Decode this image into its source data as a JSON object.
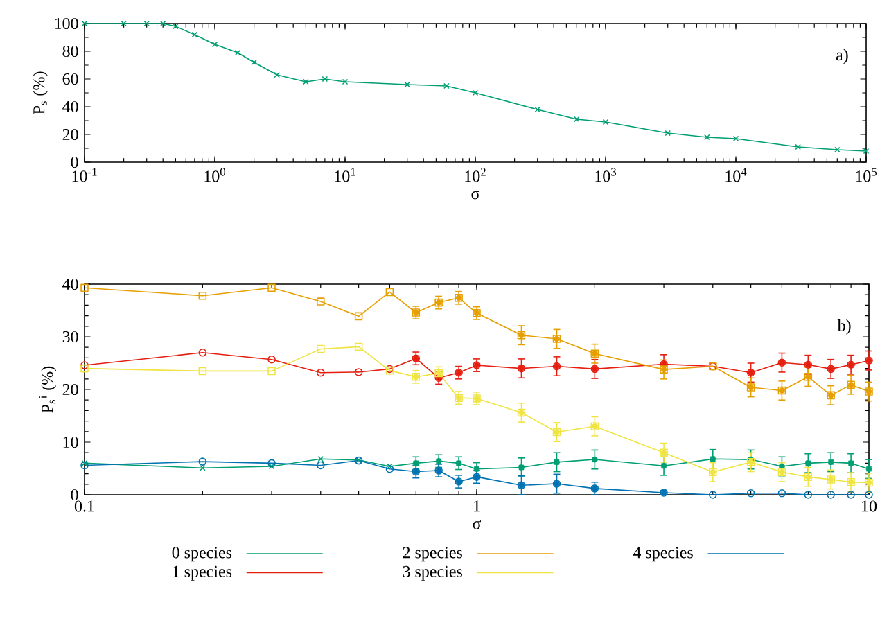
{
  "chart_data": [
    {
      "type": "line",
      "ylabel": "P$_{s}$ (%)",
      "xlabel": "σ",
      "annotations": [
        "a)"
      ],
      "log": "x",
      "marker": "cross",
      "color": "#009e73",
      "x": [
        0.1,
        0.2,
        0.3,
        0.4,
        0.5,
        0.7,
        1,
        1.5,
        2,
        3,
        5,
        7,
        10,
        30,
        60,
        100,
        300,
        600,
        1000,
        3000,
        6000,
        10000,
        30000,
        60000,
        100000
      ],
      "values": [
        100,
        100,
        100,
        100,
        98,
        92,
        85,
        79,
        72,
        63,
        58,
        60,
        58,
        56,
        55,
        50,
        38,
        31,
        29,
        21,
        18,
        17,
        11,
        9,
        8
      ],
      "xlim": [
        0.1,
        100000
      ],
      "ylim": [
        0,
        100
      ],
      "xticks": [
        {
          "value": 0.1,
          "label": "10$^{-1}$"
        },
        {
          "value": 1,
          "label": "10$^{0}$"
        },
        {
          "value": 10,
          "label": "10$^{1}$"
        },
        {
          "value": 100,
          "label": "10$^{2}$"
        },
        {
          "value": 1000,
          "label": "10$^{3}$"
        },
        {
          "value": 10000,
          "label": "10$^{4}$"
        },
        {
          "value": 100000,
          "label": "10$^{5}$"
        }
      ],
      "yticks": [
        0,
        20,
        40,
        60,
        80,
        100
      ]
    },
    {
      "type": "line",
      "ylabel": "P$_{s}$$^{i}$ (%)",
      "xlabel": "σ",
      "annotations": [
        "b)"
      ],
      "log": "x",
      "legend": "bottom",
      "x": [
        0.1,
        0.2,
        0.3,
        0.4,
        0.5,
        0.6,
        0.7,
        0.8,
        0.9,
        1,
        1.3,
        1.6,
        2,
        3,
        4,
        5,
        6,
        7,
        8,
        9,
        10
      ],
      "xlim": [
        0.1,
        10
      ],
      "ylim": [
        0,
        40
      ],
      "xticks": [
        0.1,
        1,
        10
      ],
      "yticks": [
        0,
        10,
        20,
        30,
        40
      ],
      "series": [
        {
          "name": "0 species",
          "color": "#009e73",
          "marker": "cross",
          "values": [
            6.0,
            5.1,
            5.4,
            6.8,
            6.6,
            5.4,
            6.0,
            6.4,
            6.0,
            4.9,
            5.2,
            6.2,
            6.7,
            5.5,
            6.8,
            6.7,
            5.4,
            6.0,
            6.2,
            6.0,
            4.9
          ],
          "errors": [
            null,
            null,
            null,
            null,
            null,
            null,
            1.2,
            1.2,
            1.2,
            1.2,
            1.8,
            1.8,
            1.8,
            1.8,
            1.8,
            1.8,
            1.8,
            1.8,
            1.8,
            1.8,
            1.8
          ]
        },
        {
          "name": "1 species",
          "color": "#e51e10",
          "marker": "circle",
          "values": [
            24.6,
            27.0,
            25.7,
            23.2,
            23.3,
            23.9,
            25.9,
            22.2,
            23.2,
            24.6,
            24.0,
            24.4,
            23.9,
            24.8,
            24.4,
            23.2,
            25.1,
            24.7,
            23.9,
            24.7,
            25.5
          ],
          "errors": [
            null,
            null,
            null,
            null,
            null,
            null,
            1.2,
            1.2,
            1.2,
            1.2,
            1.8,
            1.8,
            1.8,
            1.8,
            null,
            1.8,
            1.8,
            1.8,
            1.8,
            1.8,
            1.8
          ]
        },
        {
          "name": "2 species",
          "color": "#e69f00",
          "marker": "square",
          "values": [
            39.3,
            37.8,
            39.3,
            36.7,
            33.9,
            38.5,
            34.6,
            36.5,
            37.4,
            34.5,
            30.3,
            29.6,
            26.8,
            23.8,
            24.4,
            20.4,
            19.8,
            22.4,
            18.9,
            20.9,
            19.6
          ],
          "errors": [
            null,
            null,
            null,
            null,
            null,
            null,
            1.2,
            1.2,
            1.2,
            1.2,
            1.8,
            1.8,
            1.8,
            1.8,
            null,
            1.8,
            1.8,
            1.8,
            1.8,
            1.8,
            1.8
          ]
        },
        {
          "name": "3 species",
          "color": "#f0e442",
          "marker": "square",
          "values": [
            24.0,
            23.5,
            23.5,
            27.7,
            28.1,
            23.6,
            22.4,
            23.1,
            18.4,
            18.3,
            15.6,
            11.9,
            13.0,
            8.0,
            4.3,
            6.2,
            4.3,
            3.4,
            2.9,
            2.4,
            2.3
          ],
          "errors": [
            null,
            null,
            null,
            null,
            null,
            null,
            1.2,
            1.2,
            1.2,
            1.2,
            1.8,
            1.8,
            1.8,
            1.8,
            1.8,
            1.8,
            1.8,
            1.8,
            1.8,
            1.8,
            1.8
          ]
        },
        {
          "name": "4 species",
          "color": "#0072b2",
          "marker": "circle",
          "values": [
            5.6,
            6.3,
            6.0,
            5.6,
            6.5,
            4.9,
            4.4,
            4.6,
            2.5,
            3.4,
            1.8,
            2.1,
            1.2,
            0.4,
            0,
            0.3,
            0.3,
            0,
            0,
            0,
            0
          ],
          "errors": [
            null,
            null,
            null,
            null,
            null,
            null,
            1.2,
            1.2,
            1.2,
            1.2,
            1.8,
            1.8,
            1.2,
            0.4,
            null,
            null,
            null,
            null,
            null,
            null,
            null
          ]
        }
      ]
    }
  ]
}
